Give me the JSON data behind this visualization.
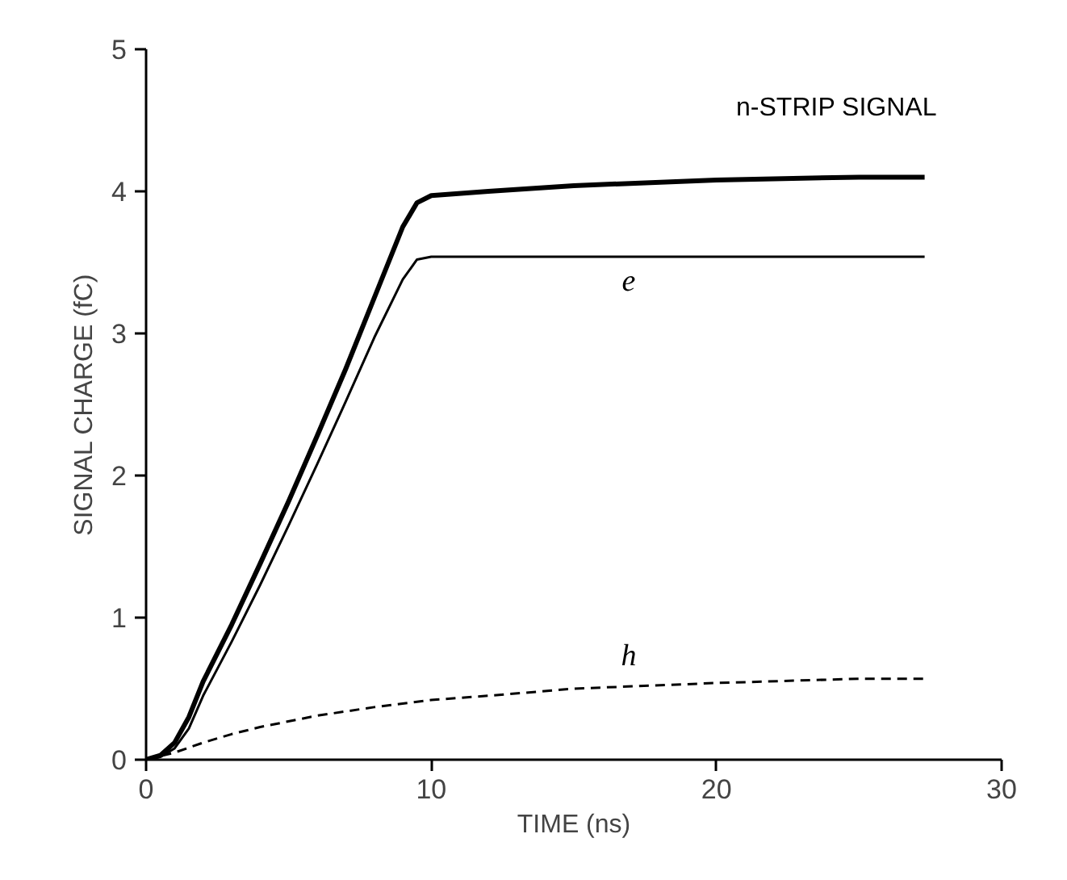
{
  "chart_data": {
    "type": "line",
    "title": "n-STRIP SIGNAL",
    "xlabel": "TIME (ns)",
    "ylabel": "SIGNAL CHARGE (fC)",
    "xlim": [
      0,
      30
    ],
    "ylim": [
      0,
      5
    ],
    "xticks": [
      0,
      10,
      20,
      30
    ],
    "yticks": [
      0,
      1,
      2,
      3,
      4,
      5
    ],
    "grid": false,
    "series": [
      {
        "color": "#000000",
        "line_style": "solid",
        "x": [
          0,
          0.5,
          1,
          1.5,
          2,
          3,
          4,
          5,
          6,
          7,
          8,
          9,
          9.5,
          10,
          12,
          15,
          20,
          25,
          27.3
        ],
        "values": [
          0,
          0.03,
          0.12,
          0.3,
          0.55,
          0.95,
          1.38,
          1.82,
          2.28,
          2.75,
          3.25,
          3.75,
          3.92,
          3.97,
          4.0,
          4.04,
          4.08,
          4.1,
          4.1
        ]
      },
      {
        "name": "e",
        "color": "#000000",
        "line_style": "solid",
        "x": [
          0,
          0.5,
          1,
          1.5,
          2,
          3,
          4,
          5,
          6,
          7,
          8,
          9,
          9.5,
          10,
          15,
          20,
          27.3
        ],
        "values": [
          0,
          0.02,
          0.08,
          0.22,
          0.45,
          0.83,
          1.23,
          1.65,
          2.08,
          2.52,
          2.97,
          3.38,
          3.52,
          3.54,
          3.54,
          3.54,
          3.54
        ]
      },
      {
        "name": "h",
        "color": "#000000",
        "line_style": "dashed",
        "x": [
          0,
          1,
          2,
          3,
          4,
          6,
          8,
          10,
          12,
          15,
          20,
          25,
          27.3
        ],
        "values": [
          0,
          0.05,
          0.12,
          0.18,
          0.23,
          0.31,
          0.37,
          0.42,
          0.45,
          0.5,
          0.54,
          0.57,
          0.57
        ]
      }
    ]
  }
}
